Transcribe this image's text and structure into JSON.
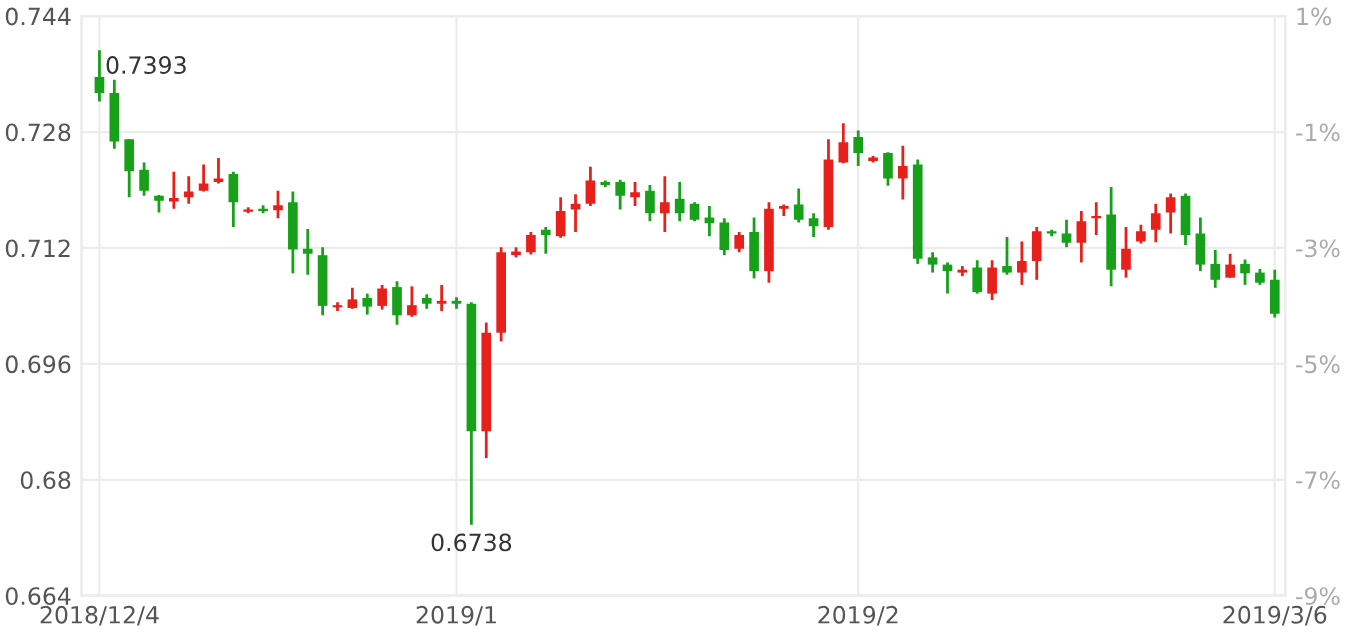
{
  "chart_data": {
    "type": "candlestick",
    "categories": [
      "2018/12/4",
      null,
      null,
      null,
      null,
      null,
      null,
      null,
      null,
      null,
      null,
      null,
      null,
      null,
      null,
      null,
      null,
      null,
      null,
      null,
      null,
      null,
      null,
      null,
      "2019/1",
      null,
      null,
      null,
      null,
      null,
      null,
      null,
      null,
      null,
      null,
      null,
      null,
      null,
      null,
      null,
      null,
      null,
      null,
      null,
      null,
      null,
      null,
      null,
      null,
      null,
      null,
      "2019/2",
      null,
      null,
      null,
      null,
      null,
      null,
      null,
      null,
      null,
      null,
      null,
      null,
      null,
      null,
      null,
      null,
      null,
      null,
      null,
      null,
      null,
      null,
      null,
      null,
      null,
      null,
      null,
      "2019/3/6"
    ],
    "ohlc": [
      [
        0.7356,
        0.7393,
        0.7322,
        0.7334
      ],
      [
        0.7334,
        0.7352,
        0.7257,
        0.7267
      ],
      [
        0.727,
        0.727,
        0.719,
        0.7226
      ],
      [
        0.7228,
        0.7238,
        0.7192,
        0.7199
      ],
      [
        0.7192,
        0.7193,
        0.7169,
        0.7185
      ],
      [
        0.7184,
        0.7225,
        0.7174,
        0.7189
      ],
      [
        0.719,
        0.7219,
        0.7181,
        0.7198
      ],
      [
        0.7199,
        0.7235,
        0.7198,
        0.7209
      ],
      [
        0.7211,
        0.7244,
        0.7209,
        0.7216
      ],
      [
        0.7222,
        0.7225,
        0.7149,
        0.7183
      ],
      [
        0.717,
        0.7176,
        0.7168,
        0.7173
      ],
      [
        0.7174,
        0.7179,
        0.7168,
        0.7171
      ],
      [
        0.7172,
        0.7199,
        0.7161,
        0.7179
      ],
      [
        0.7183,
        0.7198,
        0.7085,
        0.7118
      ],
      [
        0.7119,
        0.7146,
        0.7083,
        0.7112
      ],
      [
        0.711,
        0.7121,
        0.7027,
        0.704
      ],
      [
        0.7038,
        0.7045,
        0.7033,
        0.7041
      ],
      [
        0.7037,
        0.7065,
        0.7036,
        0.7049
      ],
      [
        0.7051,
        0.7057,
        0.7028,
        0.7039
      ],
      [
        0.704,
        0.7069,
        0.7035,
        0.7064
      ],
      [
        0.7066,
        0.7074,
        0.7014,
        0.7027
      ],
      [
        0.7027,
        0.7067,
        0.7025,
        0.7041
      ],
      [
        0.7051,
        0.7056,
        0.7036,
        0.7043
      ],
      [
        0.7043,
        0.7069,
        0.7033,
        0.7047
      ],
      [
        0.7047,
        0.7052,
        0.7036,
        0.7043
      ],
      [
        0.7043,
        0.7045,
        0.6738,
        0.6867
      ],
      [
        0.6867,
        0.7017,
        0.683,
        0.7003
      ],
      [
        0.7003,
        0.7121,
        0.6991,
        0.7114
      ],
      [
        0.711,
        0.7121,
        0.7107,
        0.7115
      ],
      [
        0.7114,
        0.7142,
        0.7111,
        0.7138
      ],
      [
        0.7145,
        0.7149,
        0.7112,
        0.7138
      ],
      [
        0.7136,
        0.719,
        0.7134,
        0.7171
      ],
      [
        0.7173,
        0.7194,
        0.7142,
        0.7181
      ],
      [
        0.7181,
        0.7232,
        0.7178,
        0.7213
      ],
      [
        0.7211,
        0.7213,
        0.7204,
        0.7207
      ],
      [
        0.7211,
        0.7214,
        0.7173,
        0.7192
      ],
      [
        0.719,
        0.7211,
        0.7178,
        0.7197
      ],
      [
        0.7199,
        0.7207,
        0.7157,
        0.7168
      ],
      [
        0.7168,
        0.7219,
        0.7142,
        0.7183
      ],
      [
        0.7188,
        0.7211,
        0.7157,
        0.7168
      ],
      [
        0.7181,
        0.7183,
        0.7157,
        0.7159
      ],
      [
        0.7162,
        0.7178,
        0.7136,
        0.7154
      ],
      [
        0.7155,
        0.7161,
        0.711,
        0.7117
      ],
      [
        0.7119,
        0.7142,
        0.7114,
        0.7138
      ],
      [
        0.7142,
        0.7162,
        0.7078,
        0.7088
      ],
      [
        0.7088,
        0.7183,
        0.7072,
        0.7174
      ],
      [
        0.7174,
        0.718,
        0.7164,
        0.7178
      ],
      [
        0.718,
        0.7202,
        0.7155,
        0.7159
      ],
      [
        0.7161,
        0.7168,
        0.7135,
        0.715
      ],
      [
        0.7149,
        0.727,
        0.7145,
        0.7242
      ],
      [
        0.7238,
        0.7292,
        0.7237,
        0.7266
      ],
      [
        0.7273,
        0.7282,
        0.7233,
        0.7251
      ],
      [
        0.724,
        0.7247,
        0.7238,
        0.7245
      ],
      [
        0.7251,
        0.7252,
        0.7206,
        0.7216
      ],
      [
        0.7216,
        0.7261,
        0.7187,
        0.7233
      ],
      [
        0.7235,
        0.7242,
        0.7098,
        0.7105
      ],
      [
        0.7107,
        0.7114,
        0.7086,
        0.7097
      ],
      [
        0.7097,
        0.71,
        0.7057,
        0.7088
      ],
      [
        0.7086,
        0.7095,
        0.7081,
        0.709
      ],
      [
        0.7093,
        0.7103,
        0.7057,
        0.7059
      ],
      [
        0.7057,
        0.7103,
        0.7048,
        0.7093
      ],
      [
        0.7095,
        0.7135,
        0.7083,
        0.7086
      ],
      [
        0.7086,
        0.7129,
        0.7069,
        0.7102
      ],
      [
        0.7102,
        0.7149,
        0.7076,
        0.7143
      ],
      [
        0.7143,
        0.7145,
        0.7136,
        0.714
      ],
      [
        0.714,
        0.7159,
        0.7121,
        0.7127
      ],
      [
        0.7127,
        0.7171,
        0.71,
        0.7157
      ],
      [
        0.7161,
        0.7183,
        0.7138,
        0.7164
      ],
      [
        0.7166,
        0.7204,
        0.7067,
        0.709
      ],
      [
        0.709,
        0.7149,
        0.7079,
        0.7119
      ],
      [
        0.7129,
        0.7152,
        0.7126,
        0.7143
      ],
      [
        0.7145,
        0.7181,
        0.7128,
        0.7168
      ],
      [
        0.7169,
        0.7195,
        0.714,
        0.719
      ],
      [
        0.7192,
        0.7195,
        0.7124,
        0.7138
      ],
      [
        0.714,
        0.7162,
        0.7088,
        0.7097
      ],
      [
        0.7098,
        0.7117,
        0.7065,
        0.7076
      ],
      [
        0.7079,
        0.7112,
        0.7079,
        0.7097
      ],
      [
        0.7098,
        0.7104,
        0.7069,
        0.7085
      ],
      [
        0.7086,
        0.7091,
        0.7069,
        0.7072
      ],
      [
        0.7076,
        0.709,
        0.7024,
        0.7029
      ]
    ],
    "colors": [
      "#17a01a",
      "#17a01a",
      "#17a01a",
      "#17a01a",
      "#17a01a",
      "#e8201c",
      "#e8201c",
      "#e8201c",
      "#e8201c",
      "#17a01a",
      "#e8201c",
      "#17a01a",
      "#e8201c",
      "#17a01a",
      "#17a01a",
      "#17a01a",
      "#e8201c",
      "#e8201c",
      "#17a01a",
      "#e8201c",
      "#17a01a",
      "#e8201c",
      "#17a01a",
      "#e8201c",
      "#17a01a",
      "#17a01a",
      "#e8201c",
      "#e8201c",
      "#e8201c",
      "#e8201c",
      "#17a01a",
      "#e8201c",
      "#e8201c",
      "#e8201c",
      "#17a01a",
      "#17a01a",
      "#e8201c",
      "#17a01a",
      "#e8201c",
      "#17a01a",
      "#17a01a",
      "#17a01a",
      "#17a01a",
      "#e8201c",
      "#17a01a",
      "#e8201c",
      "#e8201c",
      "#17a01a",
      "#17a01a",
      "#e8201c",
      "#e8201c",
      "#17a01a",
      "#e8201c",
      "#17a01a",
      "#e8201c",
      "#17a01a",
      "#17a01a",
      "#17a01a",
      "#e8201c",
      "#17a01a",
      "#e8201c",
      "#17a01a",
      "#e8201c",
      "#e8201c",
      "#17a01a",
      "#17a01a",
      "#e8201c",
      "#e8201c",
      "#17a01a",
      "#e8201c",
      "#e8201c",
      "#e8201c",
      "#e8201c",
      "#17a01a",
      "#17a01a",
      "#17a01a",
      "#e8201c",
      "#17a01a",
      "#17a01a",
      "#17a01a"
    ],
    "ylim": [
      0.664,
      0.744
    ],
    "yticks": [
      0.664,
      0.68,
      0.696,
      0.712,
      0.728,
      0.744
    ],
    "y2lim": [
      -9,
      1
    ],
    "y2ticks": [
      {
        "value": -9,
        "label": "-9%"
      },
      {
        "value": -7,
        "label": "-7%"
      },
      {
        "value": -5,
        "label": "-5%"
      },
      {
        "value": -3,
        "label": "-3%"
      },
      {
        "value": -1,
        "label": "-1%"
      },
      {
        "value": 1,
        "label": "1%"
      }
    ],
    "annotations": [
      {
        "text": "0.7393",
        "x": "2018/12/4",
        "y": 0.7393
      },
      {
        "text": "0.6738",
        "y": 0.6738
      }
    ],
    "grid": true
  }
}
